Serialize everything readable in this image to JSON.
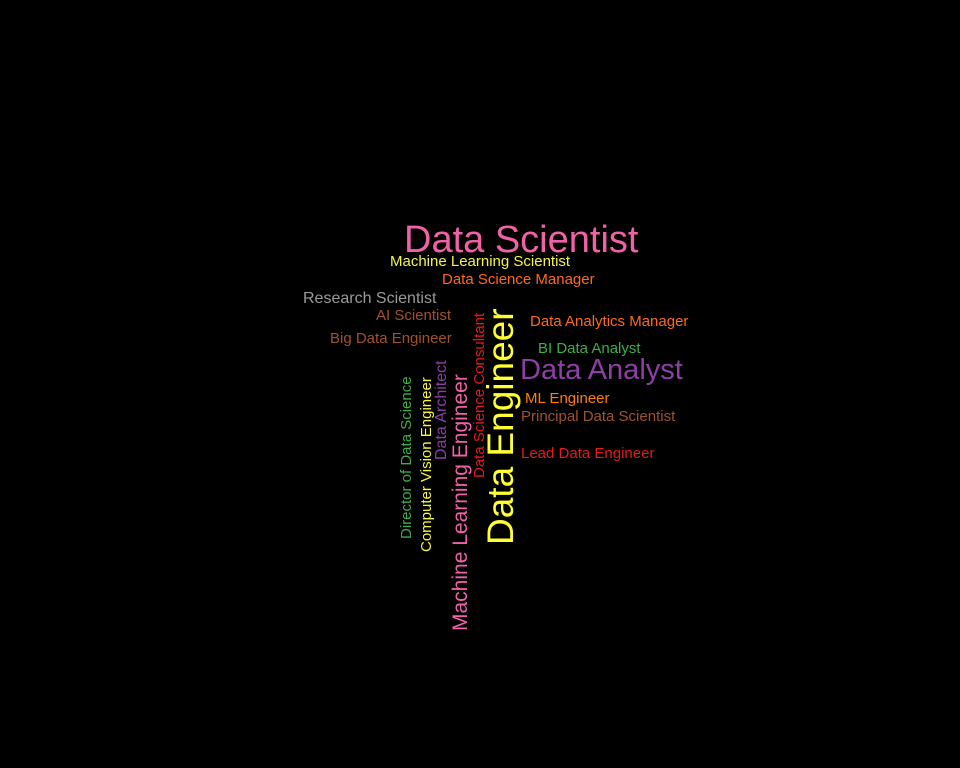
{
  "words": {
    "data_scientist": {
      "text": "Data Scientist",
      "color": "#f062a8"
    },
    "machine_learning_scientist": {
      "text": "Machine Learning Scientist",
      "color": "#f5f542"
    },
    "data_science_manager": {
      "text": "Data Science Manager",
      "color": "#ff6a1a"
    },
    "research_scientist": {
      "text": "Research Scientist",
      "color": "#9a9a9a"
    },
    "ai_scientist": {
      "text": "AI Scientist",
      "color": "#a0522d"
    },
    "data_analytics_manager": {
      "text": "Data Analytics Manager",
      "color": "#ff6a1a"
    },
    "big_data_engineer": {
      "text": "Big Data Engineer",
      "color": "#a0522d"
    },
    "bi_data_analyst": {
      "text": "BI Data Analyst",
      "color": "#3fae49"
    },
    "data_analyst": {
      "text": "Data Analyst",
      "color": "#8e3fa6"
    },
    "ml_engineer": {
      "text": "ML Engineer",
      "color": "#ff7f00"
    },
    "principal_data_scientist": {
      "text": "Principal Data Scientist",
      "color": "#a0522d"
    },
    "lead_data_engineer": {
      "text": "Lead Data Engineer",
      "color": "#e41a1c"
    },
    "director_of_data_science": {
      "text": "Director of Data Science",
      "color": "#3fae49"
    },
    "computer_vision_engineer": {
      "text": "Computer Vision Engineer",
      "color": "#f5f542"
    },
    "data_architect": {
      "text": "Data Architect",
      "color": "#8e3fa6"
    },
    "machine_learning_engineer": {
      "text": "Machine Learning Engineer",
      "color": "#f062a8"
    },
    "data_science_consultant": {
      "text": "Data Science Consultant",
      "color": "#e41a1c"
    },
    "data_engineer": {
      "text": "Data Engineer",
      "color": "#ffff33"
    }
  }
}
